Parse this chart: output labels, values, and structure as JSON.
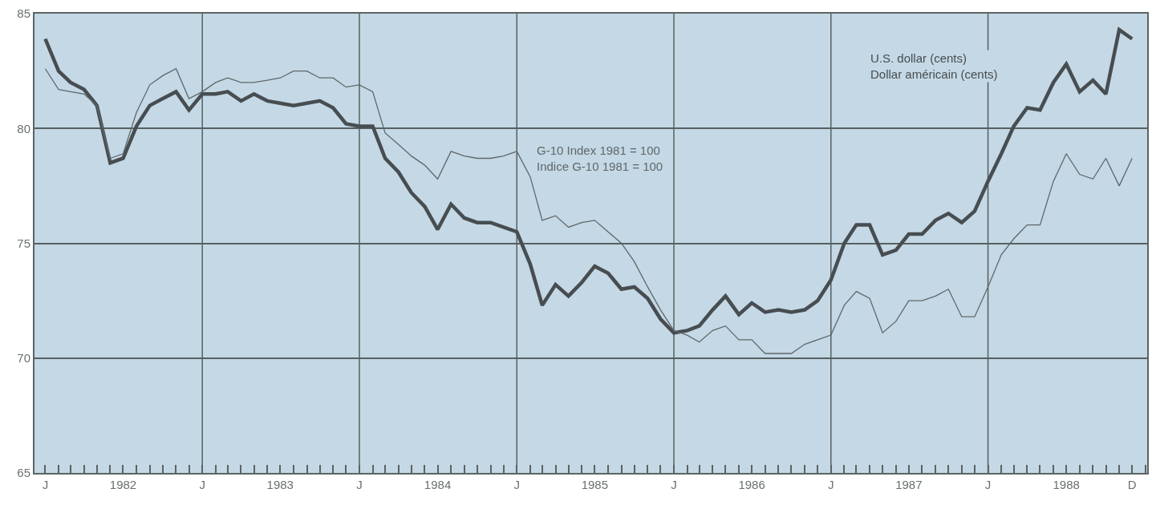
{
  "chart_data": {
    "type": "line",
    "x": [
      "1982-01",
      "1982-02",
      "1982-03",
      "1982-04",
      "1982-05",
      "1982-06",
      "1982-07",
      "1982-08",
      "1982-09",
      "1982-10",
      "1982-11",
      "1982-12",
      "1983-01",
      "1983-02",
      "1983-03",
      "1983-04",
      "1983-05",
      "1983-06",
      "1983-07",
      "1983-08",
      "1983-09",
      "1983-10",
      "1983-11",
      "1983-12",
      "1984-01",
      "1984-02",
      "1984-03",
      "1984-04",
      "1984-05",
      "1984-06",
      "1984-07",
      "1984-08",
      "1984-09",
      "1984-10",
      "1984-11",
      "1984-12",
      "1985-01",
      "1985-02",
      "1985-03",
      "1985-04",
      "1985-05",
      "1985-06",
      "1985-07",
      "1985-08",
      "1985-09",
      "1985-10",
      "1985-11",
      "1985-12",
      "1986-01",
      "1986-02",
      "1986-03",
      "1986-04",
      "1986-05",
      "1986-06",
      "1986-07",
      "1986-08",
      "1986-09",
      "1986-10",
      "1986-11",
      "1986-12",
      "1987-01",
      "1987-02",
      "1987-03",
      "1987-04",
      "1987-05",
      "1987-06",
      "1987-07",
      "1987-08",
      "1987-09",
      "1987-10",
      "1987-11",
      "1987-12",
      "1988-01",
      "1988-02",
      "1988-03",
      "1988-04",
      "1988-05",
      "1988-06",
      "1988-07",
      "1988-08",
      "1988-09",
      "1988-10",
      "1988-11",
      "1988-12"
    ],
    "series": [
      {
        "name": "U.S. dollar (cents)\nDollar américain (cents)",
        "color": "#474d50",
        "values": [
          83.9,
          82.5,
          82.0,
          81.7,
          81.0,
          78.5,
          78.7,
          80.1,
          81.0,
          81.3,
          81.6,
          80.8,
          81.5,
          81.5,
          81.6,
          81.2,
          81.5,
          81.2,
          81.1,
          81.0,
          81.1,
          81.2,
          80.9,
          80.2,
          80.1,
          80.1,
          78.7,
          78.1,
          77.2,
          76.6,
          75.6,
          76.7,
          76.1,
          75.9,
          75.9,
          75.7,
          75.5,
          74.1,
          72.3,
          73.2,
          72.7,
          73.3,
          74.0,
          73.7,
          73.0,
          73.1,
          72.6,
          71.7,
          71.1,
          71.2,
          71.4,
          72.1,
          72.7,
          71.9,
          72.4,
          72.0,
          72.1,
          72.0,
          72.1,
          72.5,
          73.4,
          75.0,
          75.8,
          75.8,
          74.5,
          74.7,
          75.4,
          75.4,
          76.0,
          76.3,
          75.9,
          76.4,
          77.7,
          78.9,
          80.1,
          80.9,
          80.8,
          82.0,
          82.8,
          81.6,
          82.1,
          81.5,
          84.3,
          83.9
        ]
      },
      {
        "name": "G-10 Index 1981 = 100\nIndice G-10 1981 = 100",
        "color": "#5f686b",
        "values": [
          82.6,
          81.7,
          81.6,
          81.5,
          81.0,
          78.7,
          78.9,
          80.7,
          81.9,
          82.3,
          82.6,
          81.3,
          81.6,
          82.0,
          82.2,
          82.0,
          82.0,
          82.1,
          82.2,
          82.5,
          82.5,
          82.2,
          82.2,
          81.8,
          81.9,
          81.6,
          79.8,
          79.3,
          78.8,
          78.4,
          77.8,
          79.0,
          78.8,
          78.7,
          78.7,
          78.8,
          79.0,
          77.9,
          76.0,
          76.2,
          75.7,
          75.9,
          76.0,
          75.5,
          75.0,
          74.2,
          73.1,
          72.1,
          71.2,
          71.0,
          70.7,
          71.2,
          71.4,
          70.8,
          70.8,
          70.2,
          70.2,
          70.2,
          70.6,
          70.8,
          71.0,
          72.3,
          72.9,
          72.6,
          71.1,
          71.6,
          72.5,
          72.5,
          72.7,
          73.0,
          71.8,
          71.8,
          73.1,
          74.5,
          75.2,
          75.8,
          75.8,
          77.7,
          78.9,
          78.0,
          77.8,
          78.7,
          77.5,
          78.7
        ]
      }
    ],
    "xlim": [
      "1981-12-07",
      "1989-01-05"
    ],
    "xticks": [
      {
        "value": "1982-01",
        "label": "J"
      },
      {
        "value": "1982-07",
        "label": "1982"
      },
      {
        "value": "1983-01",
        "label": "J"
      },
      {
        "value": "1983-07",
        "label": "1983"
      },
      {
        "value": "1984-01",
        "label": "J"
      },
      {
        "value": "1984-07",
        "label": "1984"
      },
      {
        "value": "1985-01",
        "label": "J"
      },
      {
        "value": "1985-07",
        "label": "1985"
      },
      {
        "value": "1986-01",
        "label": "J"
      },
      {
        "value": "1986-07",
        "label": "1986"
      },
      {
        "value": "1987-01",
        "label": "J"
      },
      {
        "value": "1987-07",
        "label": "1987"
      },
      {
        "value": "1988-01",
        "label": "J"
      },
      {
        "value": "1988-07",
        "label": "1988"
      },
      {
        "value": "1988-12",
        "label": "D"
      }
    ],
    "ylim": [
      65,
      85
    ],
    "yticks": [
      65,
      70,
      75,
      80,
      85
    ],
    "grid": "y",
    "ref_lines": [
      {
        "axis": "x",
        "value": "1983-01",
        "color": "#56605f"
      },
      {
        "axis": "x",
        "value": "1984-01",
        "color": "#56605f"
      },
      {
        "axis": "x",
        "value": "1985-01",
        "color": "#56605f"
      },
      {
        "axis": "x",
        "value": "1986-01",
        "color": "#56605f"
      },
      {
        "axis": "x",
        "value": "1987-01",
        "color": "#56605f"
      },
      {
        "axis": "x",
        "value": "1988-01",
        "color": "#56605f"
      }
    ],
    "legend": false
  }
}
